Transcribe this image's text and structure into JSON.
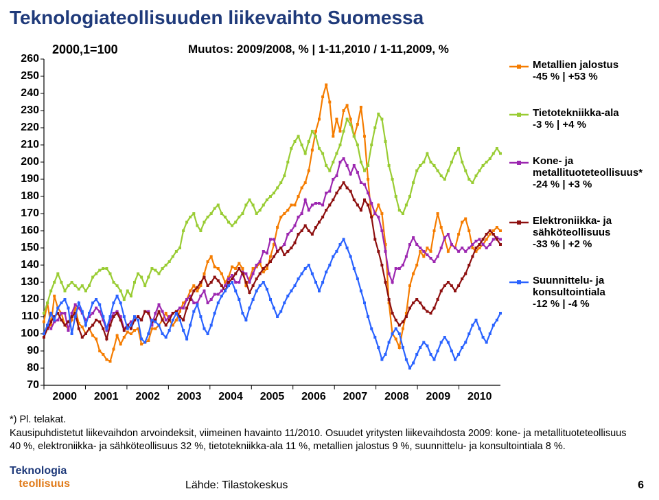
{
  "title": "Teknologiateollisuuden liikevaihto Suomessa",
  "base_label": "2000,1=100",
  "subtitle": "Muutos: 2009/2008, % | 1-11,2010 / 1-11,2009, %",
  "chart": {
    "type": "line",
    "background_color": "#ffffff",
    "axis_color": "#000000",
    "tick_color": "#000000",
    "ylim": [
      70,
      260
    ],
    "ytick_step": 10,
    "yticks": [
      70,
      80,
      90,
      100,
      110,
      120,
      130,
      140,
      150,
      160,
      170,
      180,
      190,
      200,
      210,
      220,
      230,
      240,
      250,
      260
    ],
    "xlim": [
      2000,
      2011
    ],
    "xticks": [
      2000,
      2001,
      2002,
      2003,
      2004,
      2005,
      2006,
      2007,
      2008,
      2009,
      2010
    ],
    "marker_style": "square",
    "marker_size": 4,
    "line_width": 2.2,
    "series": [
      {
        "name": "Metallien jalostus",
        "color": "#f57c00",
        "values": [
          107,
          118,
          105,
          122,
          115,
          112,
          105,
          103,
          108,
          115,
          106,
          104,
          100,
          103,
          99,
          97,
          90,
          88,
          85,
          84,
          91,
          99,
          94,
          98,
          101,
          100,
          102,
          103,
          94,
          95,
          96,
          103,
          103,
          105,
          108,
          112,
          108,
          105,
          108,
          113,
          118,
          120,
          125,
          128,
          125,
          128,
          135,
          142,
          145,
          139,
          138,
          135,
          130,
          133,
          139,
          138,
          141,
          138,
          128,
          132,
          138,
          139,
          141,
          136,
          138,
          145,
          152,
          162,
          168,
          170,
          172,
          175,
          175,
          180,
          185,
          188,
          195,
          207,
          218,
          225,
          238,
          245,
          235,
          215,
          225,
          218,
          230,
          233,
          225,
          215,
          222,
          232,
          215,
          190,
          168,
          170,
          175,
          170,
          152,
          118,
          100,
          97,
          92,
          103,
          112,
          128,
          135,
          140,
          148,
          145,
          150,
          148,
          160,
          170,
          162,
          155,
          148,
          152,
          150,
          158,
          165,
          167,
          160,
          150,
          148,
          150,
          152,
          155,
          158,
          160,
          162,
          160
        ]
      },
      {
        "name": "Tietotekniikka-ala",
        "color": "#99cc33",
        "values": [
          112,
          118,
          125,
          130,
          135,
          130,
          125,
          128,
          130,
          128,
          126,
          128,
          125,
          128,
          133,
          135,
          137,
          138,
          138,
          135,
          130,
          128,
          125,
          120,
          125,
          122,
          130,
          135,
          133,
          128,
          133,
          138,
          137,
          135,
          138,
          140,
          142,
          145,
          148,
          150,
          160,
          165,
          168,
          170,
          163,
          160,
          165,
          168,
          170,
          173,
          175,
          170,
          168,
          165,
          163,
          165,
          168,
          170,
          175,
          178,
          175,
          170,
          172,
          175,
          178,
          180,
          182,
          185,
          188,
          192,
          200,
          208,
          212,
          215,
          210,
          205,
          212,
          218,
          215,
          208,
          205,
          198,
          195,
          200,
          205,
          210,
          218,
          225,
          222,
          215,
          210,
          200,
          195,
          198,
          210,
          220,
          228,
          225,
          212,
          198,
          190,
          180,
          172,
          170,
          175,
          180,
          188,
          195,
          198,
          200,
          205,
          200,
          198,
          195,
          192,
          190,
          195,
          200,
          205,
          208,
          200,
          195,
          190,
          188,
          192,
          195,
          198,
          200,
          202,
          205,
          208,
          205
        ]
      },
      {
        "name": "Kone- ja metallituoteteollisuus*",
        "color": "#9c27b0",
        "values": [
          100,
          105,
          103,
          107,
          108,
          112,
          112,
          102,
          112,
          117,
          115,
          112,
          108,
          110,
          112,
          115,
          113,
          108,
          102,
          108,
          112,
          113,
          110,
          103,
          105,
          107,
          108,
          110,
          108,
          113,
          113,
          105,
          112,
          117,
          113,
          108,
          110,
          112,
          113,
          115,
          115,
          120,
          122,
          118,
          118,
          122,
          125,
          118,
          120,
          123,
          123,
          125,
          128,
          132,
          134,
          130,
          130,
          136,
          135,
          130,
          135,
          140,
          142,
          148,
          147,
          155,
          155,
          148,
          150,
          152,
          158,
          160,
          163,
          168,
          170,
          178,
          172,
          175,
          176,
          176,
          175,
          182,
          183,
          190,
          192,
          200,
          202,
          198,
          193,
          198,
          194,
          188,
          187,
          182,
          176,
          170,
          168,
          160,
          148,
          135,
          130,
          138,
          138,
          140,
          145,
          152,
          156,
          152,
          150,
          148,
          146,
          144,
          142,
          145,
          150,
          156,
          158,
          152,
          150,
          148,
          150,
          148,
          150,
          152,
          154,
          155,
          152,
          150,
          152,
          155,
          156,
          155
        ]
      },
      {
        "name": "Elektroniikka- ja sähköteollisuus",
        "color": "#8d0f0f",
        "values": [
          98,
          103,
          107,
          110,
          112,
          108,
          105,
          107,
          110,
          112,
          103,
          98,
          100,
          103,
          105,
          108,
          107,
          103,
          97,
          105,
          110,
          112,
          108,
          102,
          105,
          103,
          108,
          110,
          108,
          113,
          112,
          107,
          108,
          113,
          108,
          105,
          108,
          112,
          113,
          110,
          108,
          115,
          120,
          125,
          127,
          130,
          133,
          128,
          130,
          133,
          131,
          128,
          125,
          130,
          132,
          135,
          138,
          135,
          130,
          124,
          128,
          132,
          135,
          138,
          140,
          142,
          145,
          148,
          150,
          146,
          148,
          150,
          153,
          158,
          160,
          163,
          160,
          158,
          162,
          165,
          168,
          172,
          175,
          178,
          182,
          185,
          188,
          185,
          183,
          178,
          175,
          172,
          178,
          175,
          168,
          155,
          148,
          140,
          130,
          120,
          112,
          108,
          105,
          107,
          110,
          115,
          118,
          120,
          118,
          115,
          113,
          112,
          115,
          120,
          125,
          128,
          130,
          128,
          125,
          128,
          132,
          135,
          140,
          145,
          150,
          152,
          155,
          158,
          160,
          158,
          155,
          152
        ]
      },
      {
        "name": "Suunnittelu- ja konsultointiala",
        "color": "#2962ff",
        "values": [
          100,
          105,
          112,
          108,
          115,
          118,
          120,
          115,
          100,
          110,
          118,
          113,
          105,
          112,
          118,
          120,
          117,
          110,
          103,
          110,
          118,
          122,
          118,
          110,
          103,
          105,
          110,
          108,
          97,
          95,
          100,
          108,
          107,
          105,
          100,
          98,
          102,
          108,
          112,
          108,
          102,
          97,
          105,
          113,
          117,
          110,
          103,
          100,
          105,
          112,
          118,
          122,
          125,
          128,
          130,
          125,
          120,
          112,
          108,
          115,
          120,
          125,
          128,
          130,
          126,
          120,
          115,
          110,
          113,
          118,
          122,
          125,
          128,
          132,
          135,
          138,
          140,
          135,
          130,
          125,
          130,
          136,
          140,
          145,
          148,
          152,
          155,
          150,
          145,
          138,
          132,
          125,
          118,
          110,
          103,
          98,
          92,
          85,
          88,
          95,
          100,
          103,
          100,
          92,
          85,
          80,
          83,
          88,
          92,
          95,
          93,
          88,
          85,
          90,
          95,
          98,
          95,
          90,
          85,
          88,
          92,
          95,
          100,
          105,
          108,
          103,
          98,
          95,
          100,
          105,
          108,
          112
        ]
      }
    ]
  },
  "legend": [
    {
      "name": "Metallien jalostus",
      "sub": "-45 % | +53 %",
      "color": "#f57c00"
    },
    {
      "name": "Tietotekniikka-ala",
      "sub": "-3 % | +4 %",
      "color": "#99cc33"
    },
    {
      "name": "Kone- ja metallituoteteollisuus*",
      "sub": "-24 % | +3 %",
      "color": "#9c27b0"
    },
    {
      "name": "Elektroniikka- ja sähköteollisuus",
      "sub": "-33 % | +2 %",
      "color": "#8d0f0f"
    },
    {
      "name": "Suunnittelu- ja konsultointiala",
      "sub": "-12 % | -4 %",
      "color": "#2962ff"
    }
  ],
  "footnote_l1": "*) Pl. telakat.",
  "footnote_l2": "Kausipuhdistetut liikevaihdon arvoindeksit, viimeinen havainto 11/2010. Osuudet yritysten liikevaihdosta 2009: kone- ja metallituoteteollisuus",
  "footnote_l3": "40 %, elektroniikka- ja sähköteollisuus 32 %, tietotekniikka-ala 11 %, metallien jalostus 9 %, suunnittelu- ja konsultointiala 8 %.",
  "logo_top": "Teknologia",
  "logo_bottom": "teollisuus",
  "source": "Lähde: Tilastokeskus",
  "page_number": "6"
}
